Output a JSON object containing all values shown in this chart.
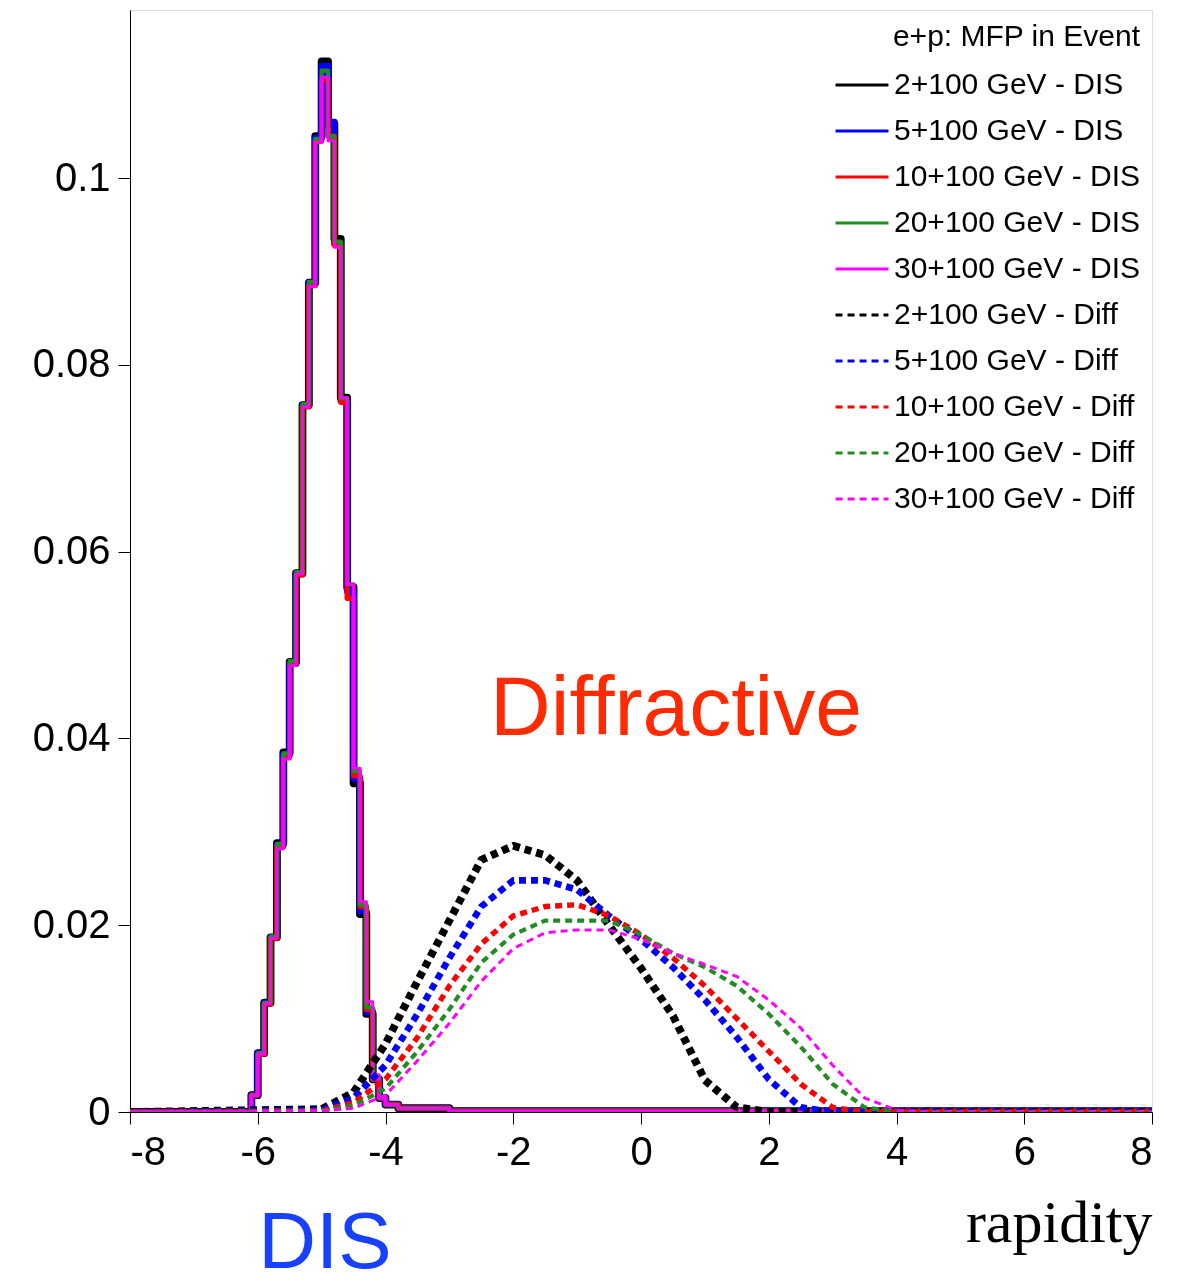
{
  "chart_data": {
    "type": "step",
    "xlabel": "rapidity",
    "legend_title": "e+p: MFP in Event",
    "legend": "top right",
    "grid": false,
    "xlim": [
      -8,
      8
    ],
    "xticks": [
      -8,
      -6,
      -4,
      -2,
      0,
      2,
      4,
      6,
      8
    ],
    "ylim": [
      0,
      0.118
    ],
    "yticks": [
      0,
      0.02,
      0.04,
      0.06,
      0.08,
      0.1
    ],
    "annotations": [
      "Diffractive",
      "DIS"
    ],
    "series": [
      {
        "name": "2+100 GeV - DIS",
        "color": "#000000",
        "type": "step",
        "line_style": "solid",
        "x": [
          -8,
          -6.1,
          -6.0,
          -5.9,
          -5.8,
          -5.7,
          -5.6,
          -5.5,
          -5.4,
          -5.3,
          -5.2,
          -5.1,
          -5.0,
          -4.9,
          -4.8,
          -4.7,
          -4.6,
          -4.5,
          -4.4,
          -4.3,
          -4.2,
          -4.1,
          -4.0,
          -3.8,
          -3.0,
          8
        ],
        "values": [
          0,
          0.0018,
          0.0063,
          0.0117,
          0.0187,
          0.0288,
          0.0385,
          0.0482,
          0.0577,
          0.0757,
          0.0888,
          0.1045,
          0.1125,
          0.1058,
          0.0935,
          0.0765,
          0.0562,
          0.0352,
          0.0212,
          0.0105,
          0.0035,
          0.0015,
          0.0008,
          0.0004,
          0.0001,
          0
        ]
      },
      {
        "name": "5+100 GeV - DIS",
        "color": "#0000ff",
        "type": "step",
        "line_style": "solid",
        "x": [
          -8,
          -6.1,
          -6.0,
          -5.9,
          -5.8,
          -5.7,
          -5.6,
          -5.5,
          -5.4,
          -5.3,
          -5.2,
          -5.1,
          -5.0,
          -4.9,
          -4.8,
          -4.7,
          -4.6,
          -4.5,
          -4.4,
          -4.3,
          -4.2,
          -4.1,
          -4.0,
          -3.8,
          -3.0,
          8
        ],
        "values": [
          0,
          0.0018,
          0.0063,
          0.0117,
          0.0187,
          0.0286,
          0.0383,
          0.048,
          0.0577,
          0.0757,
          0.0888,
          0.1043,
          0.112,
          0.106,
          0.093,
          0.0762,
          0.0558,
          0.0357,
          0.0215,
          0.0107,
          0.0035,
          0.0015,
          0.0008,
          0.0004,
          0.0001,
          0
        ]
      },
      {
        "name": "10+100 GeV - DIS",
        "color": "#ff0000",
        "type": "step",
        "line_style": "solid",
        "x": [
          -8,
          -6.1,
          -6.0,
          -5.9,
          -5.8,
          -5.7,
          -5.6,
          -5.5,
          -5.4,
          -5.3,
          -5.2,
          -5.1,
          -5.0,
          -4.9,
          -4.8,
          -4.7,
          -4.6,
          -4.5,
          -4.4,
          -4.3,
          -4.2,
          -4.1,
          -4.0,
          -3.8,
          -3.0,
          8
        ],
        "values": [
          0,
          0.0018,
          0.0062,
          0.0116,
          0.0186,
          0.0284,
          0.038,
          0.048,
          0.0575,
          0.0755,
          0.0885,
          0.104,
          0.1105,
          0.1045,
          0.0928,
          0.076,
          0.055,
          0.036,
          0.022,
          0.011,
          0.0035,
          0.0015,
          0.0008,
          0.0004,
          0.0001,
          0
        ]
      },
      {
        "name": "20+100 GeV - DIS",
        "color": "#228b22",
        "type": "step",
        "line_style": "solid",
        "x": [
          -8,
          -6.1,
          -6.0,
          -5.9,
          -5.8,
          -5.7,
          -5.6,
          -5.5,
          -5.4,
          -5.3,
          -5.2,
          -5.1,
          -5.0,
          -4.9,
          -4.8,
          -4.7,
          -4.6,
          -4.5,
          -4.4,
          -4.3,
          -4.2,
          -4.1,
          -4.0,
          -3.8,
          -3.0,
          8
        ],
        "values": [
          0,
          0.0018,
          0.0063,
          0.0117,
          0.0188,
          0.0287,
          0.0384,
          0.0483,
          0.0578,
          0.0758,
          0.0889,
          0.1042,
          0.1115,
          0.1045,
          0.0932,
          0.0764,
          0.0565,
          0.0365,
          0.0222,
          0.0112,
          0.0036,
          0.0015,
          0.0008,
          0.0004,
          0.0001,
          0
        ]
      },
      {
        "name": "30+100 GeV - DIS",
        "color": "#ff00ff",
        "type": "step",
        "line_style": "solid",
        "x": [
          -8,
          -6.1,
          -6.0,
          -5.9,
          -5.8,
          -5.7,
          -5.6,
          -5.5,
          -5.4,
          -5.3,
          -5.2,
          -5.1,
          -5.0,
          -4.9,
          -4.8,
          -4.7,
          -4.6,
          -4.5,
          -4.4,
          -4.3,
          -4.2,
          -4.1,
          -4.0,
          -3.8,
          -3.0,
          8
        ],
        "values": [
          0,
          0.0018,
          0.0062,
          0.0116,
          0.0186,
          0.0282,
          0.0378,
          0.0478,
          0.0576,
          0.0755,
          0.0884,
          0.1038,
          0.1108,
          0.104,
          0.0926,
          0.0765,
          0.0565,
          0.0368,
          0.0225,
          0.0118,
          0.004,
          0.0015,
          0.0008,
          0.0004,
          0.0001,
          0
        ]
      },
      {
        "name": "2+100 GeV - Diff",
        "color": "#000000",
        "type": "line",
        "line_style": "dashed",
        "x": [
          -8,
          -5,
          -4.5,
          -4,
          -3.5,
          -3,
          -2.5,
          -2,
          -1.5,
          -1,
          -0.5,
          0,
          0.5,
          1,
          1.5,
          2,
          8
        ],
        "values": [
          0,
          0.0003,
          0.0021,
          0.0073,
          0.014,
          0.0205,
          0.027,
          0.0285,
          0.0275,
          0.0248,
          0.02,
          0.0154,
          0.0103,
          0.0034,
          0.0005,
          0,
          0
        ]
      },
      {
        "name": "5+100 GeV - Diff",
        "color": "#0000ff",
        "type": "line",
        "line_style": "dashed",
        "x": [
          -8,
          -5,
          -4.5,
          -4,
          -3.5,
          -3,
          -2.5,
          -2,
          -1.5,
          -1,
          -0.5,
          0,
          0.5,
          1,
          1.5,
          2,
          2.5,
          3,
          8
        ],
        "values": [
          0,
          0.0002,
          0.0015,
          0.005,
          0.0105,
          0.0165,
          0.022,
          0.0248,
          0.0248,
          0.0238,
          0.021,
          0.0185,
          0.0155,
          0.012,
          0.008,
          0.0035,
          0.0005,
          0,
          0
        ]
      },
      {
        "name": "10+100 GeV - Diff",
        "color": "#ff0000",
        "type": "line",
        "line_style": "dashed",
        "x": [
          -8,
          -5,
          -4.5,
          -4,
          -3.5,
          -3,
          -2.5,
          -2,
          -1.5,
          -1,
          -0.5,
          0,
          0.5,
          1,
          1.5,
          2,
          2.5,
          3,
          3.5,
          8
        ],
        "values": [
          0,
          0.0001,
          0.001,
          0.0035,
          0.008,
          0.0135,
          0.018,
          0.021,
          0.022,
          0.0222,
          0.021,
          0.019,
          0.0165,
          0.0135,
          0.01,
          0.0065,
          0.003,
          0.0005,
          0,
          0
        ]
      },
      {
        "name": "20+100 GeV - Diff",
        "color": "#228b22",
        "type": "line",
        "line_style": "dashed",
        "x": [
          -8,
          -5,
          -4.5,
          -4,
          -3.5,
          -3,
          -2.5,
          -2,
          -1.5,
          -1,
          -0.5,
          0,
          0.5,
          1,
          1.5,
          2,
          2.5,
          3,
          3.5,
          4,
          8
        ],
        "values": [
          0,
          0.0001,
          0.0007,
          0.0025,
          0.0065,
          0.011,
          0.016,
          0.019,
          0.0205,
          0.0205,
          0.0205,
          0.019,
          0.017,
          0.0155,
          0.0135,
          0.0105,
          0.007,
          0.003,
          0.0005,
          0,
          0
        ]
      },
      {
        "name": "30+100 GeV - Diff",
        "color": "#ff00ff",
        "type": "line",
        "line_style": "dashed",
        "x": [
          -8,
          -5,
          -4.5,
          -4,
          -3.5,
          -3,
          -2.5,
          -2,
          -1.5,
          -1,
          -0.5,
          0,
          0.5,
          1,
          1.5,
          2,
          2.5,
          3,
          3.5,
          4,
          4.5,
          8
        ],
        "values": [
          0,
          0.0001,
          0.0004,
          0.0018,
          0.0055,
          0.0095,
          0.014,
          0.0175,
          0.0192,
          0.0195,
          0.0195,
          0.0185,
          0.017,
          0.0158,
          0.0145,
          0.012,
          0.009,
          0.005,
          0.0015,
          0.0002,
          0,
          0
        ]
      }
    ]
  }
}
